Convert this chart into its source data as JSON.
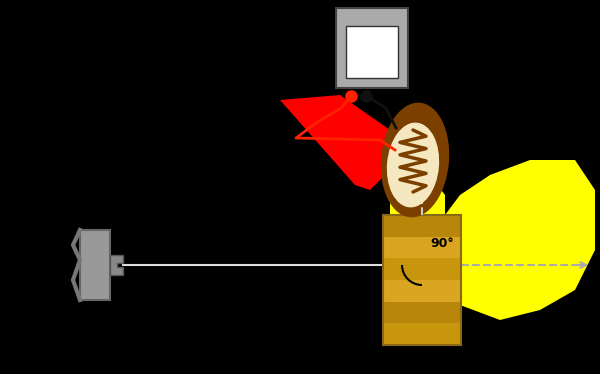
{
  "bg_color": "#000000",
  "fig_width": 6.0,
  "fig_height": 3.74,
  "dpi": 100,
  "meter_color": "#aaaaaa",
  "meter_screen_color": "#ffffff",
  "detector_body_color": "#7B3F00",
  "detector_ellipse_color": "#F5E8C0",
  "resistor_color": "#7B3F00",
  "red_cone_color": "#FF0000",
  "yellow_cone_color": "#FFFF00",
  "sample_stripe_colors": [
    "#B8860B",
    "#DAA520",
    "#C8960C",
    "#DAA520",
    "#B8860B",
    "#C8960C"
  ],
  "sample_border_color": "#8B6914"
}
